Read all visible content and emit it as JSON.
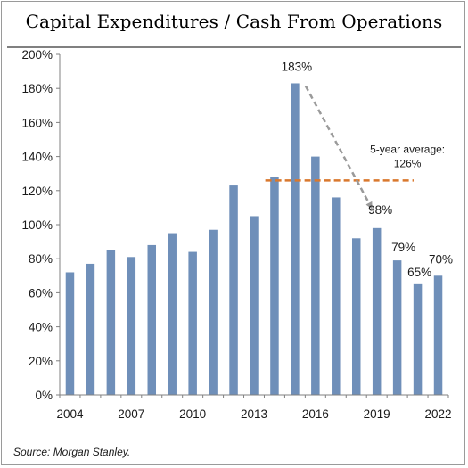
{
  "colors": {
    "bar": "#6f8fb9",
    "average_line": "#d9782d",
    "arrow": "#9a9a9a",
    "axis": "#808080"
  },
  "chart_data": {
    "type": "bar",
    "title": "Capital Expenditures / Cash From Operations",
    "source": "Source: Morgan Stanley.",
    "categories": [
      "2004",
      "2005",
      "2006",
      "2007",
      "2008",
      "2009",
      "2010",
      "2011",
      "2012",
      "2013",
      "2014",
      "2015",
      "2016",
      "2017",
      "2018",
      "2019",
      "2020",
      "2021",
      "2022"
    ],
    "values": [
      72,
      77,
      85,
      81,
      88,
      95,
      84,
      97,
      123,
      105,
      128,
      183,
      140,
      116,
      92,
      98,
      79,
      65,
      70
    ],
    "x_tick_labels": [
      "2004",
      "2007",
      "2010",
      "2013",
      "2016",
      "2019",
      "2022"
    ],
    "y_tick_labels": [
      "0%",
      "20%",
      "40%",
      "60%",
      "80%",
      "100%",
      "120%",
      "140%",
      "160%",
      "180%",
      "200%"
    ],
    "ylim": [
      0,
      200
    ],
    "y_unit": "%",
    "grid": false,
    "data_labels": [
      {
        "category": "2015",
        "text": "183%"
      },
      {
        "category": "2019",
        "text": "98%"
      },
      {
        "category": "2020",
        "text": "79%"
      },
      {
        "category": "2021",
        "text": "65%"
      },
      {
        "category": "2022",
        "text": "70%"
      }
    ],
    "average_line": {
      "value": 126,
      "from_category": "2014",
      "to_category": "2020",
      "label_line1": "5-year average:",
      "label_line2": "126%"
    },
    "arrow": {
      "from_category": "2015",
      "to_category": "2019",
      "from_value": 183,
      "to_value": 110
    }
  }
}
